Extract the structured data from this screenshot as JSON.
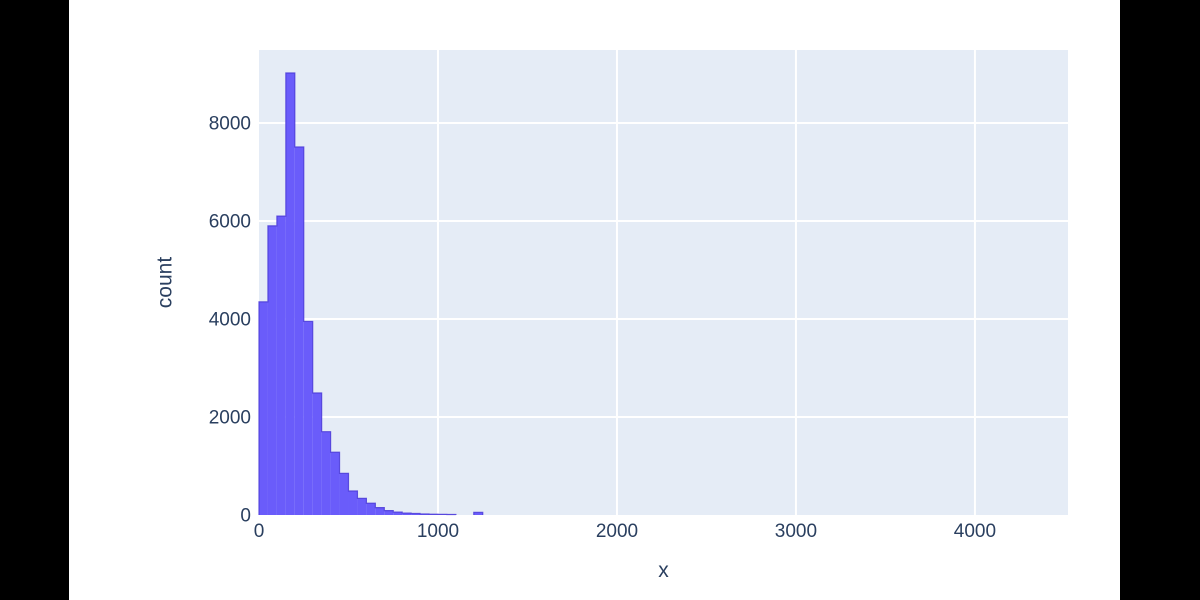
{
  "window": {
    "letterbox_color": "#000000",
    "canvas_color": "#ffffff"
  },
  "chart_data": {
    "type": "bar",
    "subtype": "histogram",
    "title": "",
    "xlabel": "x",
    "ylabel": "count",
    "legend_position": "none",
    "grid": true,
    "bins": {
      "start": 0,
      "size": 50
    },
    "counts": [
      4350,
      5900,
      6100,
      9020,
      7510,
      3950,
      2490,
      1700,
      1280,
      850,
      490,
      340,
      240,
      150,
      90,
      60,
      40,
      30,
      20,
      15,
      12,
      10,
      0,
      0,
      55
    ],
    "xlim": [
      0,
      4520
    ],
    "ylim": [
      0,
      9490
    ],
    "x_ticks": [
      0,
      1000,
      2000,
      3000,
      4000
    ],
    "y_ticks": [
      0,
      2000,
      4000,
      6000,
      8000
    ],
    "colors": {
      "bar_fill": "#6a5cfa",
      "bar_outline": "#4b3bd8",
      "plot_background": "#e5ecf6",
      "gridline": "#ffffff",
      "tick_label": "#2a3f5f",
      "axis_title": "#2a3f5f"
    }
  }
}
